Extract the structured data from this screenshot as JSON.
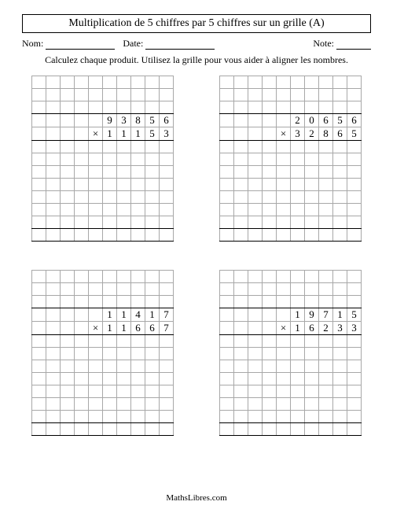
{
  "title": "Multiplication de 5 chiffres par 5 chiffres sur un grille (A)",
  "meta": {
    "name_label": "Nom:",
    "date_label": "Date:",
    "note_label": "Note:"
  },
  "instructions": "Calculez chaque produit. Utilisez la grille pour vous aider à aligner les nombres.",
  "mult_symbol": "×",
  "grid_config": {
    "cols": 10,
    "rows": 13,
    "top_row_idx": 3,
    "bottom_row_idx": 4,
    "top_start_col": 5,
    "bottom_sym_col": 4,
    "bottom_start_col": 5,
    "thick_bottom_rows": [
      2,
      4,
      11,
      12
    ],
    "cell_border_color": "#a8a8a8",
    "thick_border_color": "#000000"
  },
  "problems": [
    {
      "top": [
        "9",
        "3",
        "8",
        "5",
        "6"
      ],
      "bottom": [
        "1",
        "1",
        "1",
        "5",
        "3"
      ]
    },
    {
      "top": [
        "2",
        "0",
        "6",
        "5",
        "6"
      ],
      "bottom": [
        "3",
        "2",
        "8",
        "6",
        "5"
      ]
    },
    {
      "top": [
        "1",
        "1",
        "4",
        "1",
        "7"
      ],
      "bottom": [
        "1",
        "1",
        "6",
        "6",
        "7"
      ]
    },
    {
      "top": [
        "1",
        "9",
        "7",
        "1",
        "5"
      ],
      "bottom": [
        "1",
        "6",
        "2",
        "3",
        "3"
      ]
    }
  ],
  "footer": "MathsLibres.com",
  "meta_line_widths": {
    "name": 88,
    "date": 88,
    "note": 44
  }
}
